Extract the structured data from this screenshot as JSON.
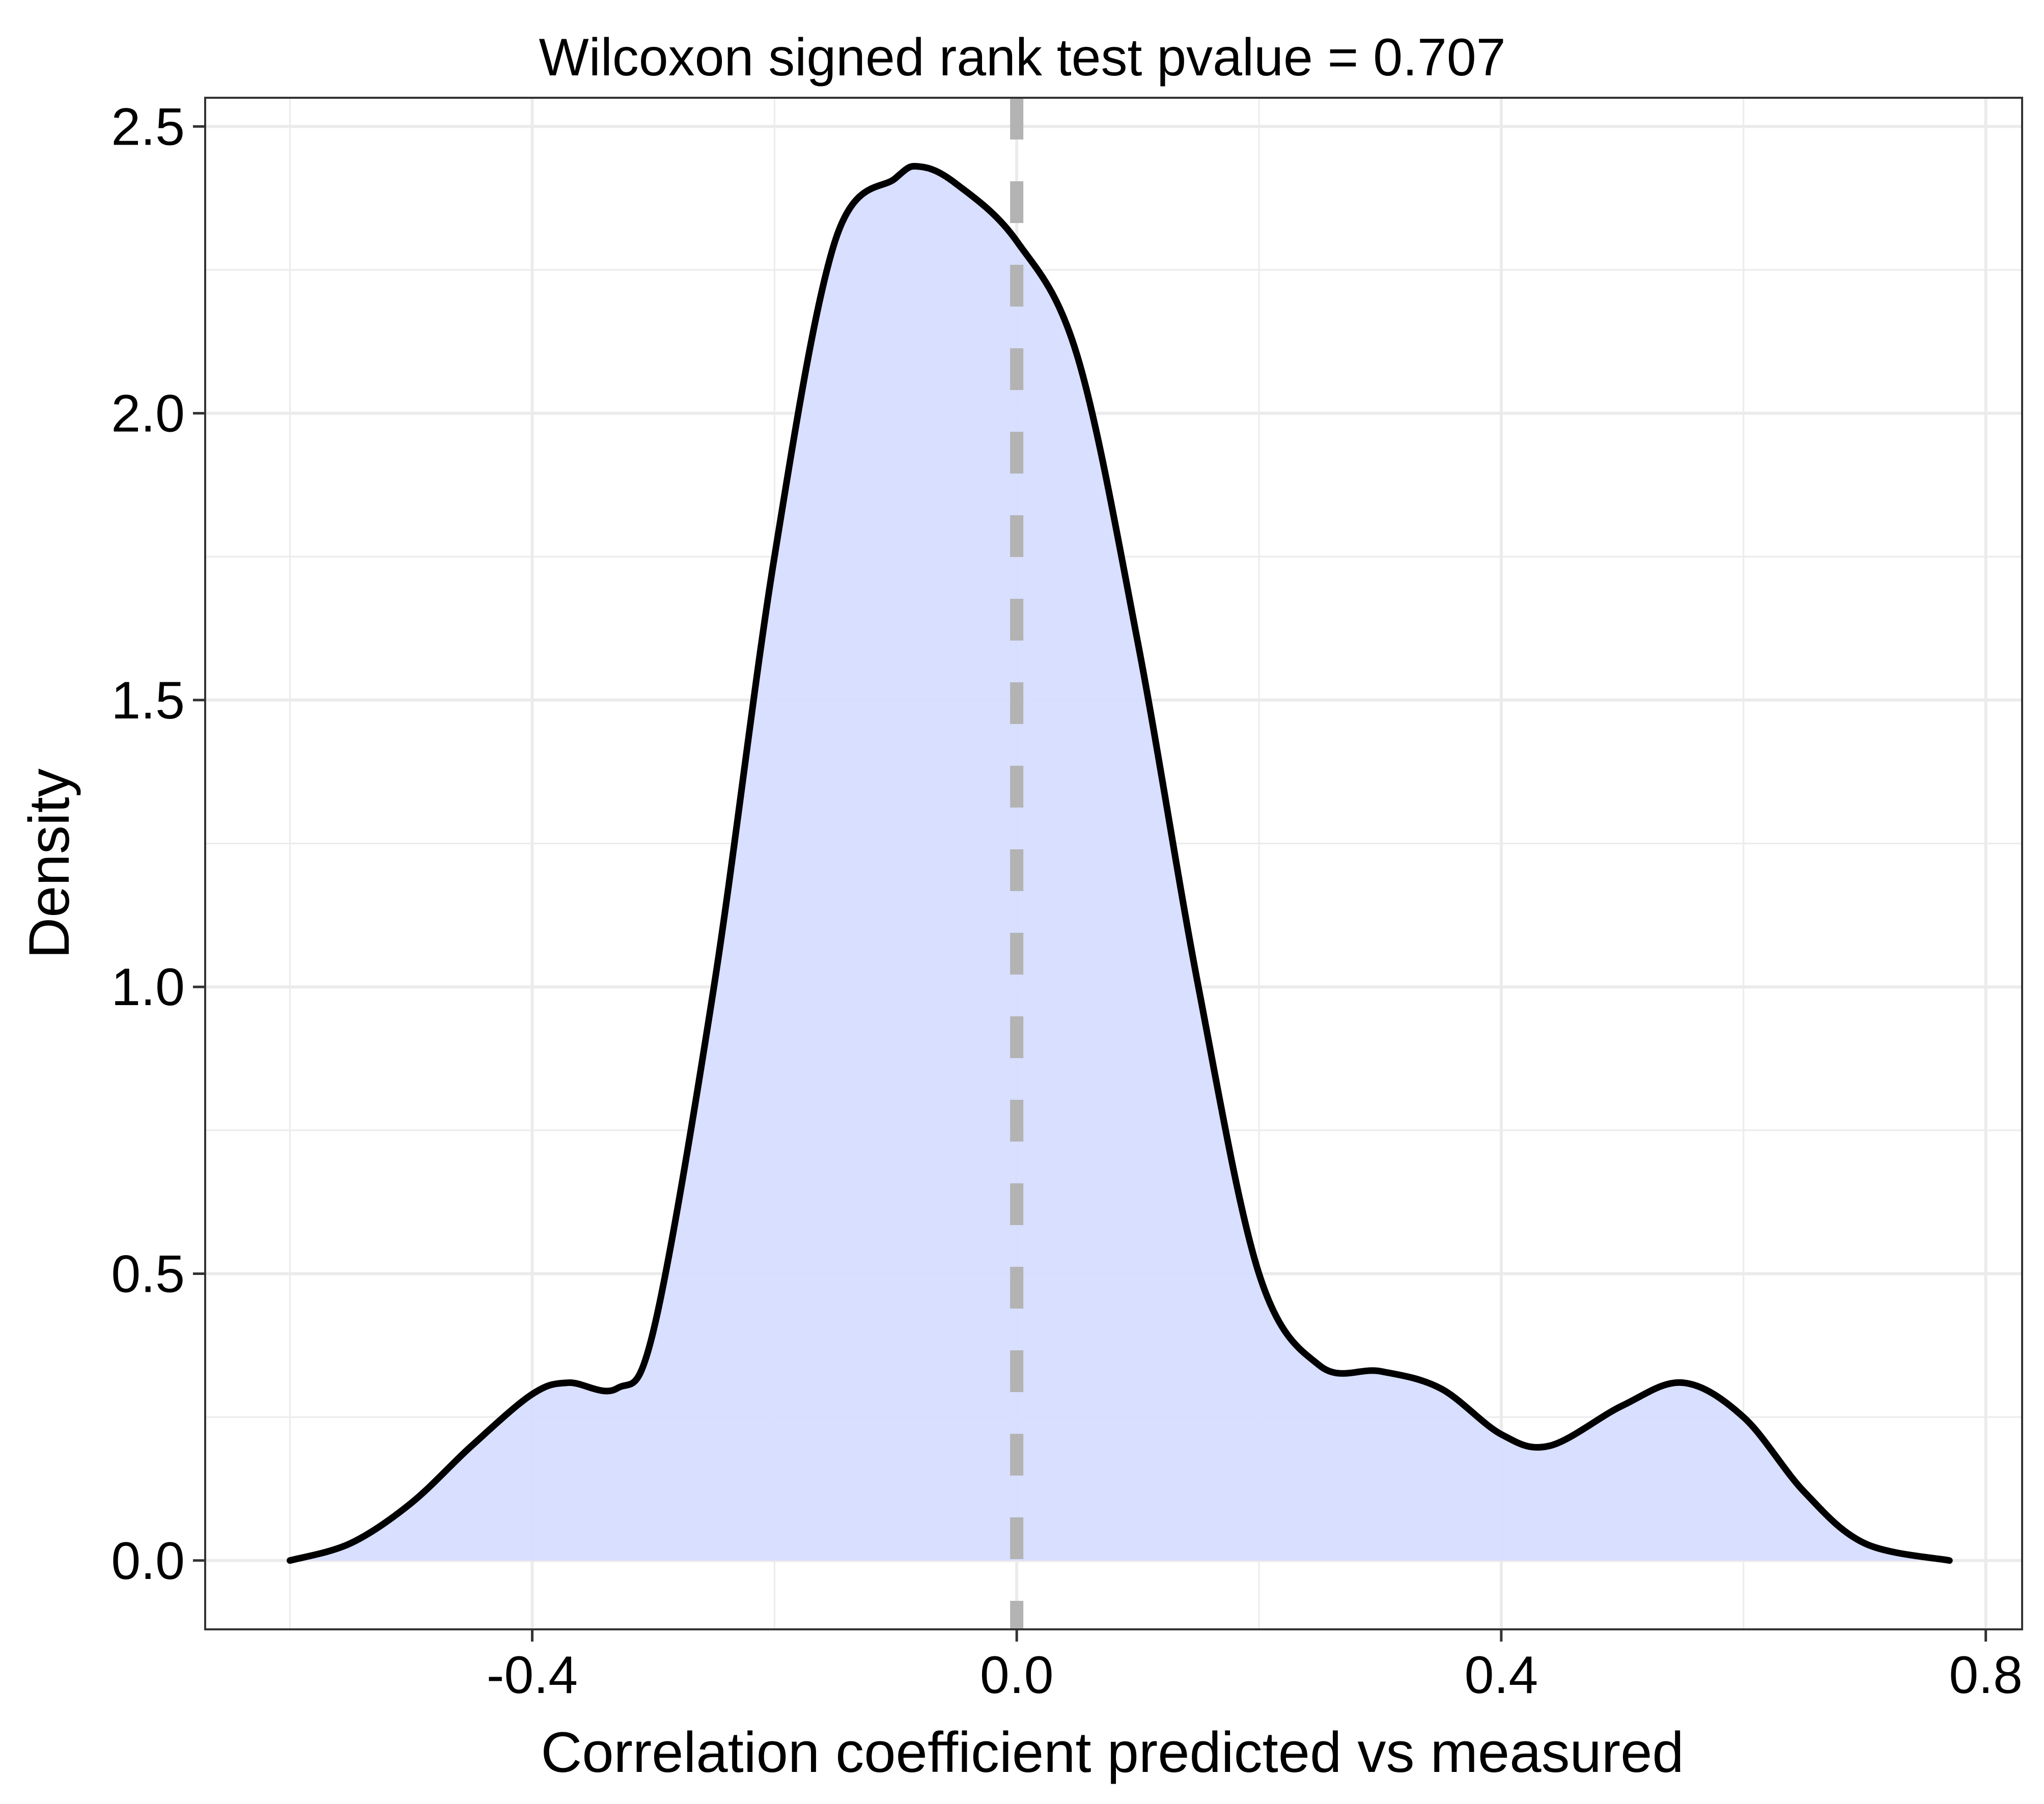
{
  "chart_data": {
    "type": "area",
    "title": "Wilcoxon signed rank test pvalue = 0.707",
    "xlabel": "Correlation coefficient predicted vs measured",
    "ylabel": "Density",
    "xlim": [
      -0.67,
      0.83
    ],
    "ylim": [
      -0.12,
      2.55
    ],
    "x_ticks": [
      -0.4,
      0.0,
      0.4,
      0.8
    ],
    "x_tick_labels": [
      "-0.4",
      "0.0",
      "0.4",
      "0.8"
    ],
    "y_ticks": [
      0.0,
      0.5,
      1.0,
      1.5,
      2.0,
      2.5
    ],
    "y_tick_labels": [
      "0.0",
      "0.5",
      "1.0",
      "1.5",
      "2.0",
      "2.5"
    ],
    "grid": true,
    "reference_line": {
      "x": 0.0,
      "style": "dashed",
      "color": "#b3b3b3"
    },
    "colors": {
      "fill": "#d6ddff",
      "line": "#000000",
      "grid": "#ebebeb",
      "panel_border": "#333333"
    },
    "series": [
      {
        "x": [
          -0.6,
          -0.55,
          -0.5,
          -0.45,
          -0.4,
          -0.37,
          -0.33,
          -0.3,
          -0.25,
          -0.2,
          -0.15,
          -0.1,
          -0.08,
          -0.05,
          0.0,
          0.05,
          0.1,
          0.15,
          0.2,
          0.25,
          0.3,
          0.35,
          0.4,
          0.44,
          0.5,
          0.55,
          0.6,
          0.65,
          0.7,
          0.77
        ],
        "y": [
          0.0,
          0.03,
          0.1,
          0.2,
          0.29,
          0.31,
          0.3,
          0.4,
          1.0,
          1.75,
          2.3,
          2.41,
          2.43,
          2.4,
          2.3,
          2.1,
          1.6,
          1.0,
          0.5,
          0.34,
          0.33,
          0.3,
          0.22,
          0.2,
          0.27,
          0.31,
          0.25,
          0.12,
          0.03,
          0.0
        ]
      }
    ]
  }
}
